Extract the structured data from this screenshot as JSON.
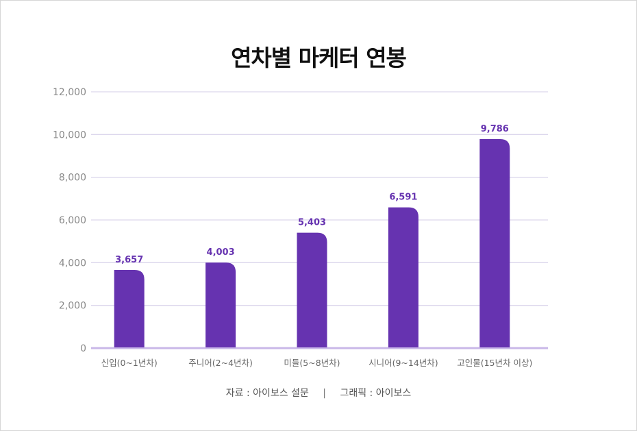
{
  "chart_data": {
    "type": "bar",
    "title": "연차별 마케터 연봉",
    "categories": [
      "신입(0~1년차)",
      "주니어(2~4년차)",
      "미들(5~8년차)",
      "시니어(9~14년차)",
      "고인물(15년차 이상)"
    ],
    "values": [
      3657,
      4003,
      5403,
      6591,
      9786
    ],
    "value_labels": [
      "3,657",
      "4,003",
      "5,403",
      "6,591",
      "9,786"
    ],
    "ylim": [
      0,
      12000
    ],
    "yticks": [
      0,
      2000,
      4000,
      6000,
      8000,
      10000,
      12000
    ],
    "ytick_labels": [
      "0",
      "2,000",
      "4,000",
      "6,000",
      "8,000",
      "10,000",
      "12,000"
    ],
    "xlabel": "",
    "ylabel": "",
    "grid": true,
    "colors": {
      "bar": "#6633b0",
      "value_label": "#6633b0",
      "grid": "#dcd7ec",
      "axis": "#c9b8e8",
      "tick_label": "#8a8a8a",
      "category_label": "#666666"
    }
  },
  "footer": {
    "source": "자료 : 아이보스 설문",
    "separator": "|",
    "graphic": "그래픽 : 아이보스"
  }
}
